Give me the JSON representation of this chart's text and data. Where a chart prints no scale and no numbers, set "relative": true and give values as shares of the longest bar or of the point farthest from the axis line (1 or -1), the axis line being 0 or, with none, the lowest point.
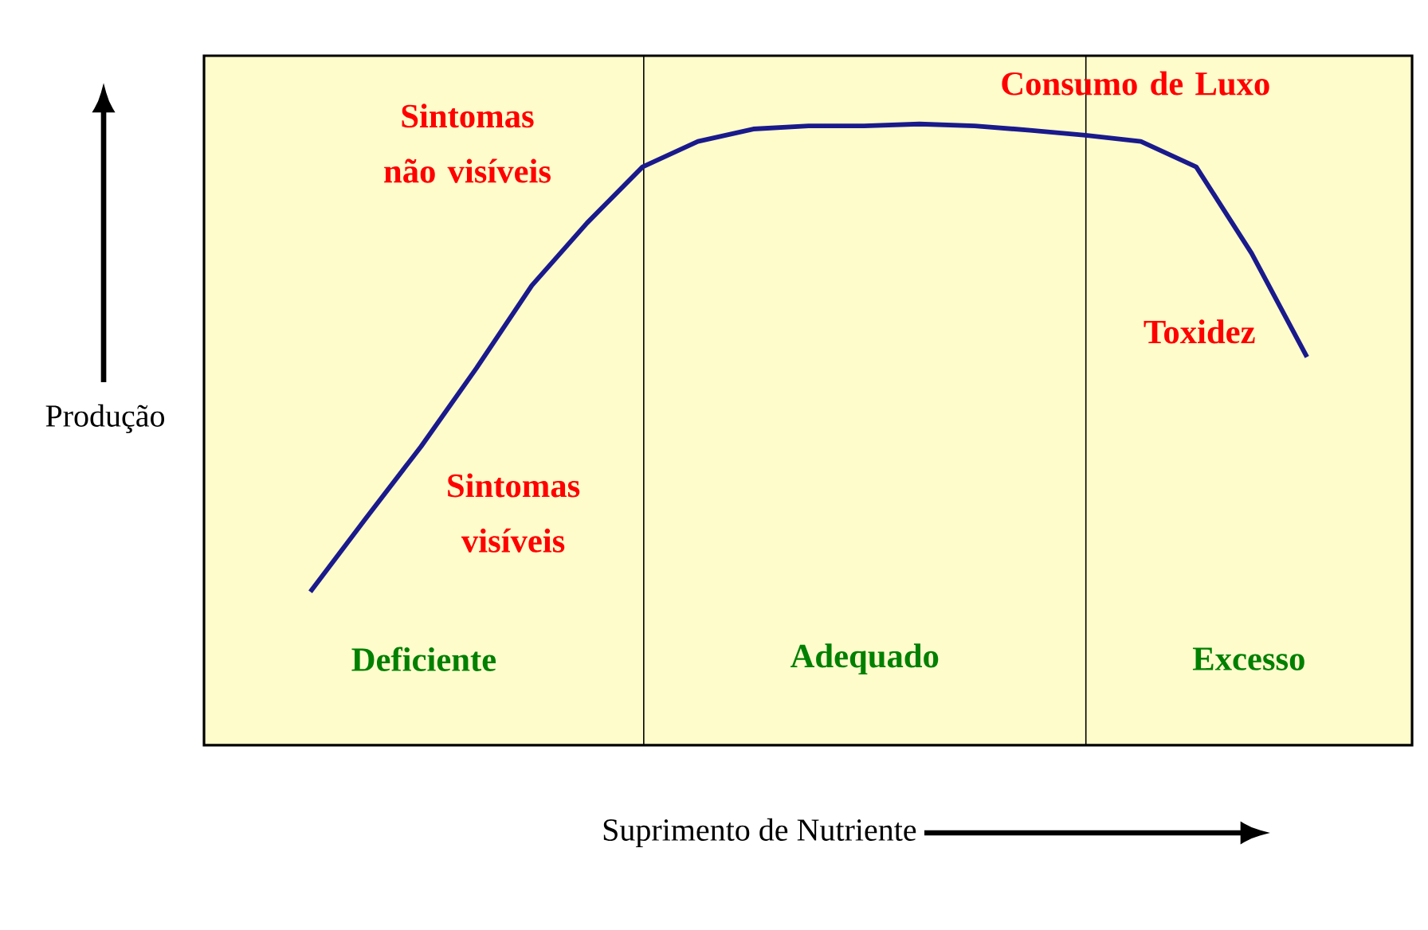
{
  "chart_data": {
    "type": "line",
    "relative": true,
    "xlabel": "Suprimento de Nutriente",
    "ylabel": "Produção",
    "tick_labels": false,
    "categories": [
      null,
      null,
      null,
      null,
      null,
      null,
      null,
      null,
      null,
      null,
      null,
      null,
      null,
      null,
      null,
      null,
      null,
      null,
      null
    ],
    "series": [
      {
        "color": "#1a1a8c",
        "values": [
          0.247,
          0.365,
          0.481,
          0.607,
          0.74,
          0.841,
          0.931,
          0.972,
          0.992,
          0.997,
          0.997,
          1,
          0.997,
          0.99,
          0.982,
          0.972,
          0.931,
          0.792,
          0.625
        ]
      }
    ],
    "annotations": [
      "Sintomas não visíveis",
      "Sintomas visíveis",
      "Consumo de Luxo",
      "Toxidez",
      "Deficiente",
      "Adequado",
      "Excesso"
    ]
  }
}
